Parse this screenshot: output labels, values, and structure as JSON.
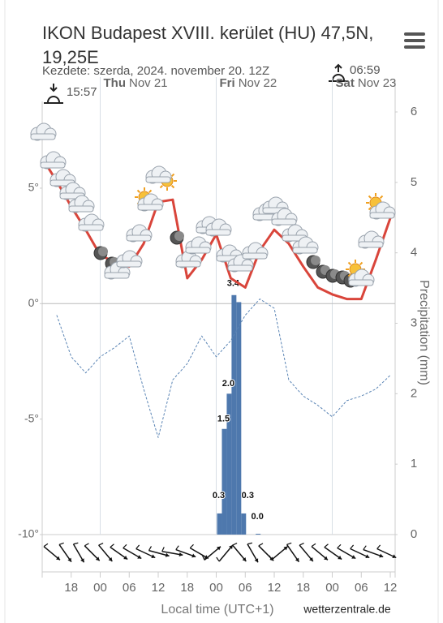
{
  "chart_data": {
    "type": "meteogram",
    "title": "IKON Budapest XVIII. kerület (HU) 47,5N, 19,25E",
    "subtitle": "Kezdete: szerda, 2024. november 20. 12Z",
    "sunrise": "06:59",
    "sunset": "15:57",
    "days": [
      {
        "x": 12,
        "day": "Thu",
        "date": "Nov 21"
      },
      {
        "x": 36,
        "day": "Fri",
        "date": "Nov 22"
      },
      {
        "x": 60,
        "day": "Sat",
        "date": "Nov 23"
      }
    ],
    "x_label": "Local time (UTC+1)",
    "y2_label": "Precipitation (mm)",
    "source": "wetterzentrale.de",
    "xlim": [
      0,
      73
    ],
    "xticks": [
      {
        "value": 6,
        "label": "18"
      },
      {
        "value": 12,
        "label": "00"
      },
      {
        "value": 18,
        "label": "06"
      },
      {
        "value": 24,
        "label": "12"
      },
      {
        "value": 30,
        "label": "18"
      },
      {
        "value": 36,
        "label": "00"
      },
      {
        "value": 42,
        "label": "06"
      },
      {
        "value": 48,
        "label": "12"
      },
      {
        "value": 54,
        "label": "18"
      },
      {
        "value": 60,
        "label": "00"
      },
      {
        "value": 66,
        "label": "06"
      },
      {
        "value": 72,
        "label": "12"
      }
    ],
    "ylim": [
      -10,
      8.3
    ],
    "yticks": [
      {
        "value": 5,
        "label": "5°"
      },
      {
        "value": 0,
        "label": "0°"
      },
      {
        "value": -5,
        "label": "-5°"
      },
      {
        "value": -10,
        "label": "-10°"
      }
    ],
    "y2lim": [
      0,
      6
    ],
    "y2ticks": [
      0,
      1,
      2,
      3,
      4,
      5,
      6
    ],
    "x": [
      0,
      3,
      6,
      9,
      12,
      15,
      18,
      21,
      24,
      27,
      30,
      33,
      36,
      39,
      42,
      45,
      48,
      51,
      54,
      57,
      60,
      63,
      66,
      69,
      72
    ],
    "series": [
      {
        "name": "Temperature",
        "color": "#d9453b",
        "values": [
          6.3,
          5.3,
          4.2,
          3.2,
          2.1,
          1.8,
          1.6,
          2.6,
          4.4,
          4.5,
          1.1,
          1.9,
          3.0,
          1.1,
          0.7,
          2.3,
          3.2,
          2.6,
          1.6,
          0.7,
          0.4,
          0.2,
          0.2,
          1.9,
          3.7
        ]
      },
      {
        "name": "Dew point",
        "color": "#5b85b5",
        "values": [
          null,
          -0.5,
          -2.3,
          -3.0,
          -2.3,
          -1.9,
          -1.4,
          -3.7,
          -5.8,
          -3.3,
          -2.6,
          -1.4,
          -2.3,
          -1.6,
          -0.5,
          0.2,
          -0.2,
          -3.3,
          -4.0,
          -4.4,
          -4.9,
          -4.2,
          -4.0,
          -3.7,
          -3.1
        ]
      }
    ],
    "precip": {
      "axis": "y2",
      "color": "#4e78ad",
      "x": [
        36,
        37,
        38,
        39,
        40,
        41,
        44
      ],
      "values": [
        0.3,
        1.5,
        2.0,
        3.4,
        3.3,
        0.3,
        0.0
      ],
      "value_labels": [
        "0.3",
        "1.5",
        "2.0",
        "3.4",
        null,
        "0.3",
        "0.0"
      ]
    }
  }
}
